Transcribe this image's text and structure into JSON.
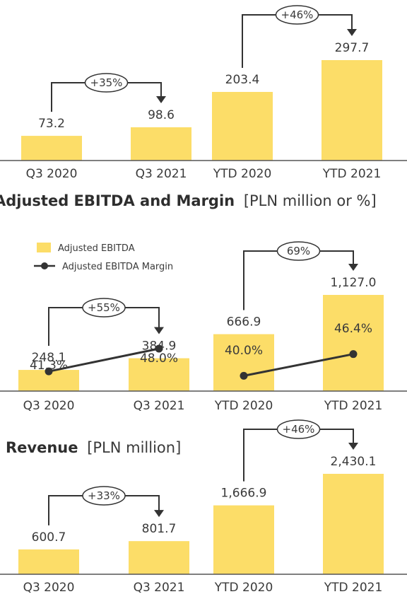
{
  "colors": {
    "bar": "#FCDD68",
    "line": "#333333",
    "axis": "#555555",
    "text": "#3a3a3a"
  },
  "chart_data": [
    {
      "type": "bar",
      "title": "",
      "categories": [
        "Q3 2020",
        "Q3 2021",
        "YTD 2020",
        "YTD 2021"
      ],
      "values": [
        73.2,
        98.6,
        203.4,
        297.7
      ],
      "value_labels": [
        "73.2",
        "98.6",
        "203.4",
        "297.7"
      ],
      "comparisons": [
        {
          "from": 0,
          "to": 1,
          "label": "+35%"
        },
        {
          "from": 2,
          "to": 3,
          "label": "+46%"
        }
      ]
    },
    {
      "type": "bar",
      "title_bold": "Adjusted EBITDA and Margin",
      "title_rest": "[PLN million or %]",
      "categories": [
        "Q3 2020",
        "Q3 2021",
        "YTD 2020",
        "YTD 2021"
      ],
      "series": [
        {
          "name": "Adjusted EBITDA",
          "type": "bar",
          "values": [
            248.1,
            384.9,
            666.9,
            1127.0
          ],
          "labels": [
            "248.1",
            "384.9",
            "666.9",
            "1,127.0"
          ]
        },
        {
          "name": "Adjusted EBITDA Margin",
          "type": "line",
          "unit": "%",
          "values": [
            41.3,
            48.0,
            40.0,
            46.4
          ],
          "labels": [
            "41.3%",
            "48.0%",
            "40.0%",
            "46.4%"
          ]
        }
      ],
      "legend_position": "top-left",
      "comparisons": [
        {
          "from": 0,
          "to": 1,
          "label": "+55%"
        },
        {
          "from": 2,
          "to": 3,
          "label": "69%"
        }
      ]
    },
    {
      "type": "bar",
      "title_bold": "Revenue",
      "title_rest": "[PLN million]",
      "categories": [
        "Q3 2020",
        "Q3 2021",
        "YTD 2020",
        "YTD 2021"
      ],
      "values": [
        600.7,
        801.7,
        1666.9,
        2430.1
      ],
      "value_labels": [
        "600.7",
        "801.7",
        "1,666.9",
        "2,430.1"
      ],
      "comparisons": [
        {
          "from": 0,
          "to": 1,
          "label": "+33%"
        },
        {
          "from": 2,
          "to": 3,
          "label": "+46%"
        }
      ]
    }
  ]
}
